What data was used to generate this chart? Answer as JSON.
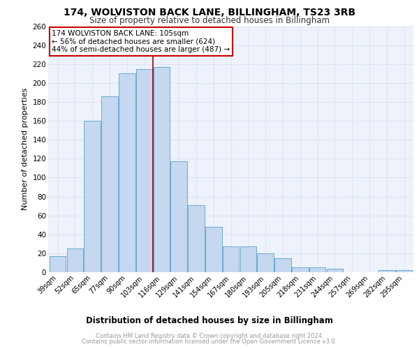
{
  "title1": "174, WOLVISTON BACK LANE, BILLINGHAM, TS23 3RB",
  "title2": "Size of property relative to detached houses in Billingham",
  "xlabel": "Distribution of detached houses by size in Billingham",
  "ylabel": "Number of detached properties",
  "categories": [
    "39sqm",
    "52sqm",
    "65sqm",
    "77sqm",
    "90sqm",
    "103sqm",
    "116sqm",
    "129sqm",
    "141sqm",
    "154sqm",
    "167sqm",
    "180sqm",
    "193sqm",
    "205sqm",
    "218sqm",
    "231sqm",
    "244sqm",
    "257sqm",
    "269sqm",
    "282sqm",
    "295sqm"
  ],
  "values": [
    17,
    25,
    160,
    186,
    210,
    215,
    217,
    117,
    71,
    48,
    27,
    27,
    20,
    15,
    5,
    5,
    4,
    0,
    0,
    2,
    2
  ],
  "bar_color": "#c5d8f0",
  "bar_edge_color": "#6aaad4",
  "grid_color": "#dce6f5",
  "vline_x": 5.5,
  "vline_color": "#990000",
  "annotation_text": "174 WOLVISTON BACK LANE: 105sqm\n← 56% of detached houses are smaller (624)\n44% of semi-detached houses are larger (487) →",
  "annotation_box_color": "#ffffff",
  "annotation_box_edge_color": "#cc0000",
  "ylim": [
    0,
    260
  ],
  "yticks": [
    0,
    20,
    40,
    60,
    80,
    100,
    120,
    140,
    160,
    180,
    200,
    220,
    240,
    260
  ],
  "footer1": "Contains HM Land Registry data © Crown copyright and database right 2024.",
  "footer2": "Contains public sector information licensed under the Open Government Licence v3.0.",
  "bg_color": "#eef2fa",
  "title1_fontsize": 10,
  "title2_fontsize": 8.5,
  "ylabel_fontsize": 8,
  "xlabel_fontsize": 8.5,
  "tick_fontsize": 7,
  "annotation_fontsize": 7.5,
  "footer_fontsize": 6
}
